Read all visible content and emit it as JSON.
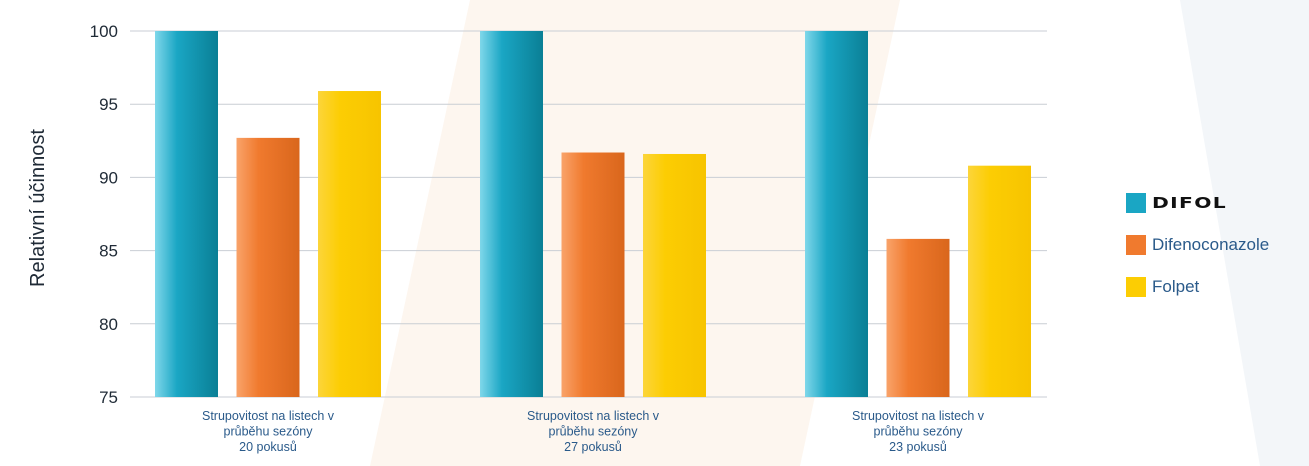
{
  "chart_data": {
    "type": "bar",
    "ylabel": "Relativní účinnost",
    "ylim": [
      75,
      100
    ],
    "yticks": [
      75,
      80,
      85,
      90,
      95,
      100
    ],
    "grid": true,
    "legend_position": "right",
    "categories": [
      [
        "Strupovitost na listech v",
        "průběhu sezóny",
        "20 pokusů"
      ],
      [
        "Strupovitost na listech v",
        "průběhu sezóny",
        "27 pokusů"
      ],
      [
        "Strupovitost na listech v",
        "průběhu sezóny",
        "23 pokusů"
      ]
    ],
    "series": [
      {
        "name": "DIFOL",
        "color": "#1aa6c4",
        "values": [
          100,
          100,
          100
        ]
      },
      {
        "name": "Difenoconazole",
        "color": "#f07a2e",
        "values": [
          92.7,
          91.7,
          85.8
        ]
      },
      {
        "name": "Folpet",
        "color": "#fccd03",
        "values": [
          95.9,
          91.6,
          90.8
        ]
      }
    ]
  }
}
